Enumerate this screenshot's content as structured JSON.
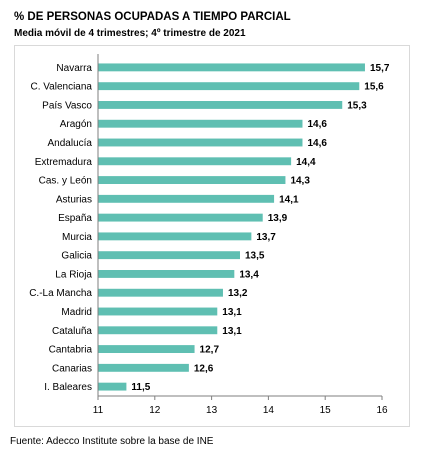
{
  "title": "% DE PERSONAS OCUPADAS A TIEMPO PARCIAL",
  "subtitle": "Media móvil de 4 trimestres; 4º trimestre de 2021",
  "source": "Fuente: Adecco Institute sobre la base de INE",
  "colors": {
    "bar": "#5fbfb2",
    "axis": "#7f7f7f"
  },
  "chart_data": {
    "type": "bar",
    "orientation": "horizontal",
    "categories": [
      "Navarra",
      "C. Valenciana",
      "País Vasco",
      "Aragón",
      "Andalucía",
      "Extremadura",
      "Cas. y León",
      "Asturias",
      "España",
      "Murcia",
      "Galicia",
      "La Rioja",
      "C.-La Mancha",
      "Madrid",
      "Cataluña",
      "Cantabria",
      "Canarias",
      "I. Baleares"
    ],
    "values": [
      15.7,
      15.6,
      15.3,
      14.6,
      14.6,
      14.4,
      14.3,
      14.1,
      13.9,
      13.7,
      13.5,
      13.4,
      13.2,
      13.1,
      13.1,
      12.7,
      12.6,
      11.5
    ],
    "value_labels": [
      "15,7",
      "15,6",
      "15,3",
      "14,6",
      "14,6",
      "14,4",
      "14,3",
      "14,1",
      "13,9",
      "13,7",
      "13,5",
      "13,4",
      "13,2",
      "13,1",
      "13,1",
      "12,7",
      "12,6",
      "11,5"
    ],
    "xlim": [
      11,
      16
    ],
    "xticks": [
      11,
      12,
      13,
      14,
      15,
      16
    ],
    "xtick_labels": [
      "11",
      "12",
      "13",
      "14",
      "15",
      "16"
    ],
    "grid": false,
    "legend": "none"
  }
}
